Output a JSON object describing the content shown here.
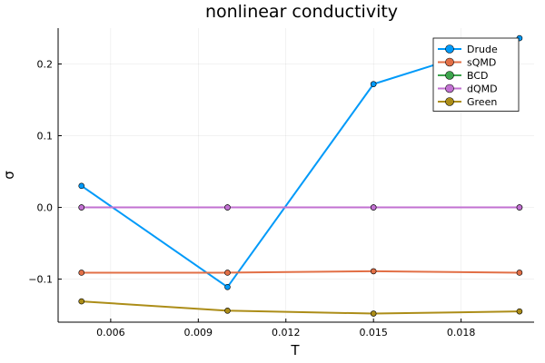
{
  "chart_data": {
    "type": "line",
    "title": "nonlinear conductivity",
    "xlabel": "T",
    "ylabel": "σ",
    "xlim": [
      0.0042,
      0.0205
    ],
    "ylim": [
      -0.16,
      0.25
    ],
    "xticks": [
      0.006,
      0.009,
      0.012,
      0.015,
      0.018
    ],
    "xtick_labels": [
      "0.006",
      "0.009",
      "0.012",
      "0.015",
      "0.018"
    ],
    "yticks": [
      -0.1,
      0.0,
      0.1,
      0.2
    ],
    "ytick_labels": [
      "−0.1",
      "0.0",
      "0.1",
      "0.2"
    ],
    "grid": true,
    "legend_position": "top-right",
    "x": [
      0.005,
      0.01,
      0.015,
      0.02
    ],
    "series": [
      {
        "name": "Drude",
        "color": "#009af9",
        "values": [
          0.03,
          -0.111,
          0.172,
          0.236
        ]
      },
      {
        "name": "sQMD",
        "color": "#e26f46",
        "values": [
          -0.091,
          -0.091,
          -0.089,
          -0.091
        ]
      },
      {
        "name": "BCD",
        "color": "#3da44d",
        "values": [
          0.0,
          0.0,
          0.0,
          0.0
        ]
      },
      {
        "name": "dQMD",
        "color": "#c271d2",
        "values": [
          0.0,
          0.0,
          0.0,
          0.0
        ]
      },
      {
        "name": "Green",
        "color": "#ac8d18",
        "values": [
          -0.131,
          -0.144,
          -0.148,
          -0.145
        ]
      }
    ]
  }
}
